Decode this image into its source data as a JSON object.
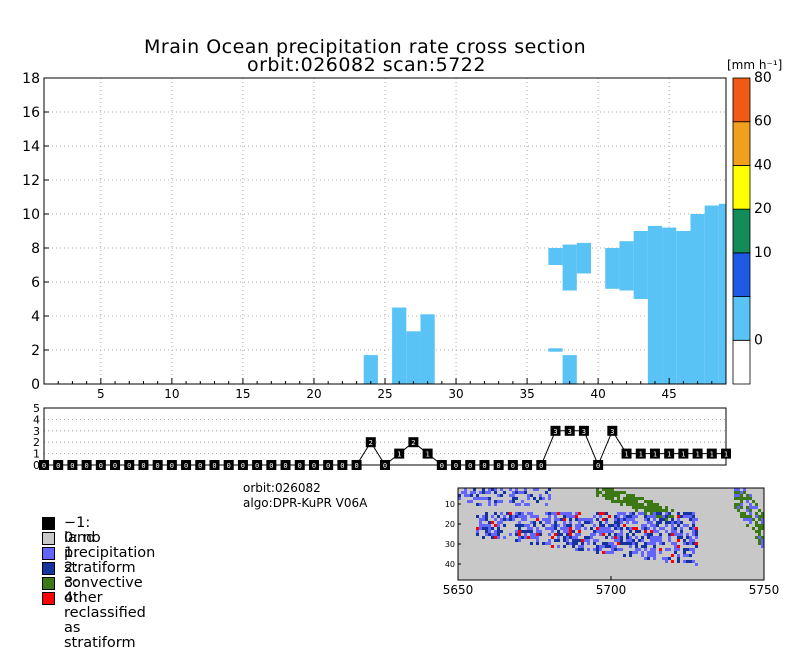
{
  "header": {
    "title_line1": "Mrain Ocean precipitation rate cross section",
    "title_line2": "orbit:026082    scan:5722"
  },
  "colorbar": {
    "unit_label": "[mm h⁻¹]",
    "levels": [
      {
        "label": "0",
        "color": "#ffffff"
      },
      {
        "label": "",
        "color": "#5ac3f5"
      },
      {
        "label": "10",
        "color": "#1f5ae6"
      },
      {
        "label": "20",
        "color": "#148c5a"
      },
      {
        "label": "40",
        "color": "#ffff00"
      },
      {
        "label": "60",
        "color": "#f0a01e"
      },
      {
        "label": "80",
        "color": "#f05a14"
      }
    ]
  },
  "info": {
    "orbit": "orbit:026082",
    "algo": "algo:DPR-KuPR V06A"
  },
  "legend": [
    {
      "label": "−1: land",
      "color": "#000000"
    },
    {
      "label": "0: no precipitation",
      "color": "#c8c8c8"
    },
    {
      "label": "1: stratiform",
      "color": "#6464ff"
    },
    {
      "label": "2: convective",
      "color": "#1432a0"
    },
    {
      "label": "3: other",
      "color": "#3c7814"
    },
    {
      "label": "4: reclassified as stratiform",
      "color": "#ff0000"
    }
  ],
  "chart_data": [
    {
      "type": "heatmap",
      "title": "Mrain Ocean precipitation rate cross section",
      "xlim": [
        1,
        49
      ],
      "ylim": [
        0,
        18
      ],
      "x_ticks": [
        5,
        10,
        15,
        20,
        25,
        30,
        35,
        40,
        45
      ],
      "y_ticks": [
        0,
        2,
        4,
        6,
        8,
        10,
        12,
        14,
        16,
        18
      ],
      "grid": true,
      "series": [
        {
          "description": "precipitation rate 0-10 mm h-1 region, per ray: [ray, bottom_km, top_km]",
          "columns": [
            [
              24,
              0,
              1.7
            ],
            [
              26,
              0,
              4.5
            ],
            [
              27,
              0,
              3.1
            ],
            [
              28,
              0,
              4.1
            ],
            [
              37,
              1.9,
              2.1
            ],
            [
              37,
              7.0,
              8.0
            ],
            [
              38,
              0,
              1.7
            ],
            [
              38,
              5.5,
              8.2
            ],
            [
              39,
              6.5,
              8.3
            ],
            [
              41,
              5.6,
              8.0
            ],
            [
              42,
              5.5,
              8.4
            ],
            [
              43,
              5.0,
              9.0
            ],
            [
              44,
              0,
              9.3
            ],
            [
              45,
              0,
              9.2
            ],
            [
              46,
              0,
              9.0
            ],
            [
              47,
              0,
              10.0
            ],
            [
              48,
              0,
              10.5
            ],
            [
              49,
              0,
              10.6
            ]
          ]
        }
      ]
    },
    {
      "type": "line",
      "title": "",
      "xlim": [
        1,
        49
      ],
      "ylim": [
        0,
        5
      ],
      "y_ticks": [
        0,
        1,
        2,
        3,
        4,
        5
      ],
      "x": [
        1,
        2,
        3,
        4,
        5,
        6,
        7,
        8,
        9,
        10,
        11,
        12,
        13,
        14,
        15,
        16,
        17,
        18,
        19,
        20,
        21,
        22,
        23,
        24,
        25,
        26,
        27,
        28,
        29,
        30,
        31,
        32,
        33,
        34,
        35,
        36,
        37,
        38,
        39,
        40,
        41,
        42,
        43,
        44,
        45,
        46,
        47,
        48,
        49
      ],
      "values": [
        0,
        0,
        0,
        0,
        0,
        0,
        0,
        0,
        0,
        0,
        0,
        0,
        0,
        0,
        0,
        0,
        0,
        0,
        0,
        0,
        0,
        0,
        0,
        2,
        0,
        1,
        2,
        1,
        0,
        0,
        0,
        0,
        0,
        0,
        0,
        0,
        3,
        3,
        3,
        0,
        3,
        1,
        1,
        1,
        1,
        1,
        1,
        1,
        1
      ]
    },
    {
      "type": "heatmap",
      "title": "",
      "xlim": [
        5650,
        5750
      ],
      "x_ticks": [
        5650,
        5700,
        5750
      ],
      "y_ticks": [
        10,
        20,
        30,
        40
      ]
    }
  ]
}
